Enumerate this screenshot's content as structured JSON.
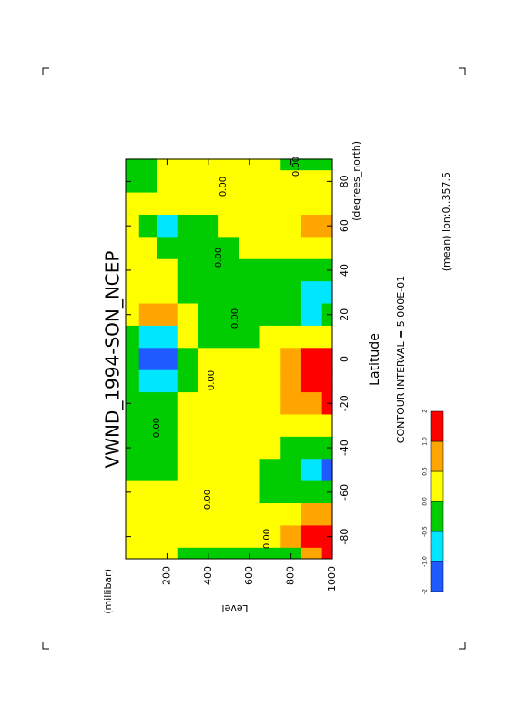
{
  "chart_data": {
    "type": "contour",
    "title": "VWND_1994-SON_NCEP",
    "x_label": "Latitude",
    "x_units": "(degrees_north)",
    "y_label": "Level",
    "y_units": "(millibar)",
    "x": [
      -90,
      -80,
      -70,
      -60,
      -50,
      -40,
      -30,
      -20,
      -10,
      0,
      10,
      20,
      30,
      40,
      50,
      60,
      70,
      80,
      90
    ],
    "y": [
      30,
      100,
      200,
      300,
      400,
      500,
      600,
      700,
      800,
      900,
      1000
    ],
    "values": [
      [
        0.2,
        0.2,
        0.2,
        0.1,
        -0.2,
        -0.3,
        -0.3,
        -0.2,
        -0.2,
        -0.4,
        -0.3,
        0.1,
        0.2,
        0.1,
        0.1,
        0.1,
        0.1,
        -0.2,
        -0.2
      ],
      [
        0.2,
        0.2,
        0.2,
        0.1,
        -0.2,
        -0.3,
        -0.3,
        -0.2,
        -0.6,
        -1.2,
        -0.7,
        0.6,
        0.2,
        0.1,
        0.1,
        -0.2,
        0.1,
        -0.1,
        -0.2
      ],
      [
        0.1,
        0.2,
        0.2,
        0.1,
        -0.2,
        -0.3,
        -0.2,
        -0.3,
        -0.7,
        -1.3,
        -0.8,
        0.5,
        0.2,
        0.1,
        -0.2,
        -0.6,
        0.1,
        0.2,
        0.1
      ],
      [
        -0.1,
        0.2,
        0.2,
        0.2,
        0.1,
        0.1,
        0.2,
        0.2,
        -0.2,
        -0.2,
        0.1,
        0.2,
        -0.2,
        -0.3,
        -0.2,
        -0.2,
        0.2,
        0.2,
        0.2
      ],
      [
        -0.2,
        0.1,
        0.2,
        0.3,
        0.2,
        0.2,
        0.2,
        0.2,
        0.2,
        0.1,
        -0.1,
        -0.2,
        -0.3,
        -0.3,
        -0.3,
        -0.2,
        0.2,
        0.2,
        0.3
      ],
      [
        -0.2,
        0.2,
        0.2,
        0.3,
        0.2,
        0.2,
        0.2,
        0.2,
        0.2,
        0.2,
        -0.1,
        -0.2,
        -0.3,
        -0.2,
        -0.2,
        0.1,
        0.2,
        0.2,
        0.3
      ],
      [
        -0.2,
        0.2,
        0.2,
        0.2,
        0.1,
        0.2,
        0.3,
        0.2,
        0.2,
        0.2,
        -0.2,
        -0.3,
        -0.3,
        -0.2,
        0.1,
        0.2,
        0.2,
        0.2,
        0.3
      ],
      [
        -0.3,
        0.3,
        0.2,
        -0.2,
        -0.2,
        0.1,
        0.2,
        0.3,
        0.4,
        0.4,
        0.2,
        -0.2,
        -0.2,
        -0.1,
        0.1,
        0.2,
        0.2,
        0.1,
        0.2
      ],
      [
        -0.2,
        0.7,
        0.4,
        -0.2,
        -0.4,
        -0.2,
        0.1,
        0.6,
        0.8,
        0.7,
        0.3,
        -0.3,
        -0.4,
        -0.2,
        0.2,
        0.3,
        0.2,
        0.1,
        -0.2
      ],
      [
        0.6,
        1.4,
        0.6,
        -0.2,
        -0.8,
        -0.3,
        0.2,
        0.9,
        1.3,
        1.2,
        0.4,
        -0.6,
        -0.6,
        -0.2,
        0.2,
        0.6,
        0.2,
        0.1,
        -0.2
      ],
      [
        1.3,
        1.6,
        0.7,
        -0.2,
        -1.1,
        -0.4,
        0.2,
        1.1,
        1.6,
        1.5,
        0.4,
        -0.5,
        -0.7,
        -0.2,
        0.1,
        0.6,
        0.2,
        0.1,
        -0.2
      ]
    ],
    "xlim": [
      -90,
      90
    ],
    "xticks": [
      -80,
      -60,
      -40,
      -20,
      0,
      20,
      40,
      60,
      80
    ],
    "ylim": [
      0,
      1000
    ],
    "y_inverted": true,
    "yticks": [
      200,
      400,
      600,
      800,
      1000
    ],
    "contour_labels": [
      "0.00",
      "0.00",
      "0.00",
      "0.00",
      "0.00",
      "0.00",
      "0.00",
      "0.00"
    ],
    "contour_interval": "CONTOUR INTERVAL = 5.000E-01",
    "annotation": "(mean) lon:0..357.5",
    "colorbar": {
      "levels": [
        -2,
        {
          "value": -1,
          "label": "-1.0"
        },
        -0.5,
        {
          "value": 0,
          "label": "0.0"
        },
        0.5,
        {
          "value": 1,
          "label": "1.0"
        },
        2
      ],
      "colors": [
        "#1e5aff",
        "#00e6ff",
        "#00cc00",
        "#ffff00",
        "#ffa500",
        "#ff0000"
      ]
    }
  }
}
